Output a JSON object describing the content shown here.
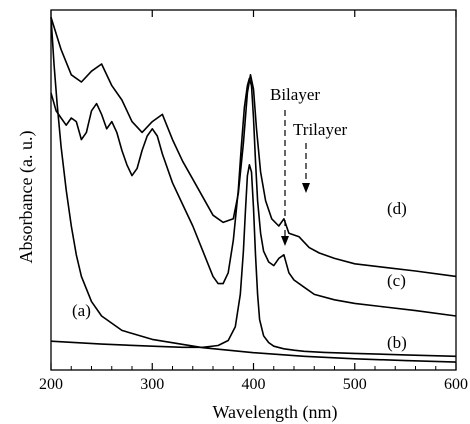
{
  "chart_data": {
    "type": "line",
    "xlabel": "Wavelength (nm)",
    "ylabel": "Absorbance (a. u.)",
    "xlim": [
      200,
      600
    ],
    "ylim": [
      0,
      100
    ],
    "x_ticks": [
      200,
      300,
      400,
      500,
      600
    ],
    "x_tick_labels": [
      "200",
      "300",
      "400",
      "500",
      "600"
    ],
    "grid": false,
    "series": [
      {
        "name": "(a)",
        "x": [
          200,
          203,
          206,
          210,
          215,
          220,
          225,
          230,
          240,
          250,
          270,
          300,
          350,
          400,
          450,
          500,
          550,
          600
        ],
        "y": [
          98,
          85,
          74,
          62,
          50,
          40,
          32,
          26,
          19,
          15,
          11,
          8.5,
          6.2,
          4.8,
          3.8,
          3.1,
          2.6,
          2.2
        ]
      },
      {
        "name": "(b)",
        "x": [
          200,
          250,
          300,
          330,
          350,
          365,
          375,
          382,
          387,
          390,
          392,
          394,
          396,
          398,
          400,
          402,
          404,
          406,
          410,
          415,
          420,
          430,
          440,
          450,
          470,
          500,
          550,
          600
        ],
        "y": [
          8,
          7.2,
          6.6,
          6.3,
          6.3,
          6.8,
          8.2,
          12,
          21,
          33,
          44,
          54,
          57,
          55,
          45,
          32,
          21,
          14,
          9.5,
          7.6,
          6.6,
          5.9,
          5.5,
          5.2,
          4.9,
          4.6,
          4.2,
          3.8
        ]
      },
      {
        "name": "(c)",
        "x": [
          200,
          205,
          210,
          215,
          220,
          225,
          230,
          235,
          240,
          245,
          250,
          255,
          260,
          265,
          270,
          275,
          280,
          285,
          290,
          295,
          300,
          305,
          310,
          320,
          330,
          340,
          350,
          360,
          365,
          370,
          375,
          380,
          385,
          388,
          391,
          394,
          396,
          398,
          400,
          402,
          404,
          407,
          410,
          415,
          420,
          425,
          430,
          435,
          440,
          450,
          460,
          480,
          500,
          530,
          560,
          600
        ],
        "y": [
          77,
          72,
          70,
          68,
          70,
          69,
          64,
          66,
          72,
          74,
          71,
          67,
          69,
          66,
          61,
          57,
          54,
          56,
          61,
          65,
          67,
          65,
          60,
          52,
          46,
          40,
          33,
          26,
          24,
          24,
          27,
          36,
          50,
          62,
          73,
          79,
          81,
          79,
          70,
          58,
          47,
          38,
          33,
          30,
          29,
          31,
          32,
          27,
          25,
          23,
          21,
          19.5,
          18.5,
          17.5,
          16.5,
          15
        ]
      },
      {
        "name": "(d)",
        "x": [
          200,
          210,
          220,
          230,
          240,
          250,
          260,
          270,
          280,
          290,
          300,
          310,
          320,
          330,
          340,
          350,
          360,
          370,
          380,
          385,
          390,
          394,
          397,
          400,
          403,
          407,
          412,
          418,
          425,
          430,
          435,
          445,
          450,
          455,
          465,
          480,
          500,
          530,
          560,
          600
        ],
        "y": [
          98,
          89,
          82,
          80,
          83,
          85,
          79,
          75,
          69,
          66,
          69,
          71,
          64,
          58,
          53,
          48,
          43,
          41,
          42,
          49,
          63,
          77,
          82,
          78,
          67,
          55,
          47,
          42,
          40,
          42,
          38,
          37,
          35.5,
          34,
          32.5,
          31,
          29.5,
          28.5,
          27.5,
          26
        ]
      }
    ],
    "curve_labels": [
      "(a)",
      "(b)",
      "(c)",
      "(d)"
    ],
    "annotations": [
      "Bilayer",
      "Trilayer"
    ]
  }
}
